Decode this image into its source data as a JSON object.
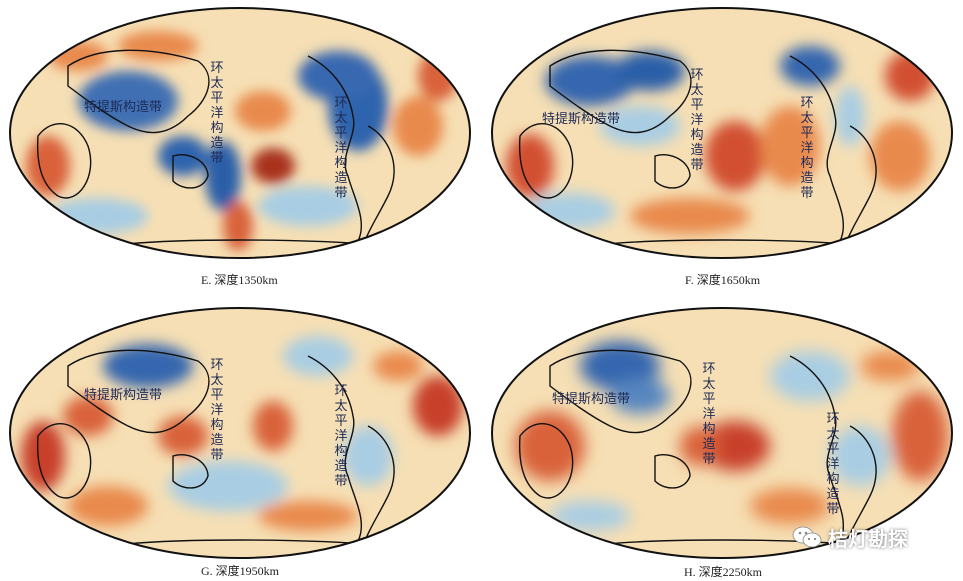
{
  "panels": [
    {
      "id": "E",
      "caption": "E. 深度1350km",
      "labels": {
        "tethys": "特提斯构造带",
        "west_pacific": "环太平洋构造带",
        "east_pacific": "环太平洋构造带"
      }
    },
    {
      "id": "F",
      "caption": "F. 深度1650km",
      "labels": {
        "tethys": "特提斯构造带",
        "west_pacific": "环太平洋构造带",
        "east_pacific": "环太平洋构造带"
      }
    },
    {
      "id": "G",
      "caption": "G. 深度1950km",
      "labels": {
        "tethys": "特提斯构造带",
        "west_pacific": "环太平洋构造带",
        "east_pacific": "环太平洋构造带"
      }
    },
    {
      "id": "H",
      "caption": "H. 深度2250km",
      "labels": {
        "tethys": "特提斯构造带",
        "west_pacific": "环太平洋构造带",
        "east_pacific": "环太平洋构造带"
      }
    }
  ],
  "colors": {
    "base": "#f6dfb4",
    "slow_red": "#c8402a",
    "slow_orange": "#e98a4e",
    "fast_blue": "#2b5fa8",
    "fast_light_blue": "#a9cde3",
    "coastline": "#111111"
  },
  "watermark": {
    "icon": "wechat-icon",
    "text": "桔灯勘探"
  }
}
